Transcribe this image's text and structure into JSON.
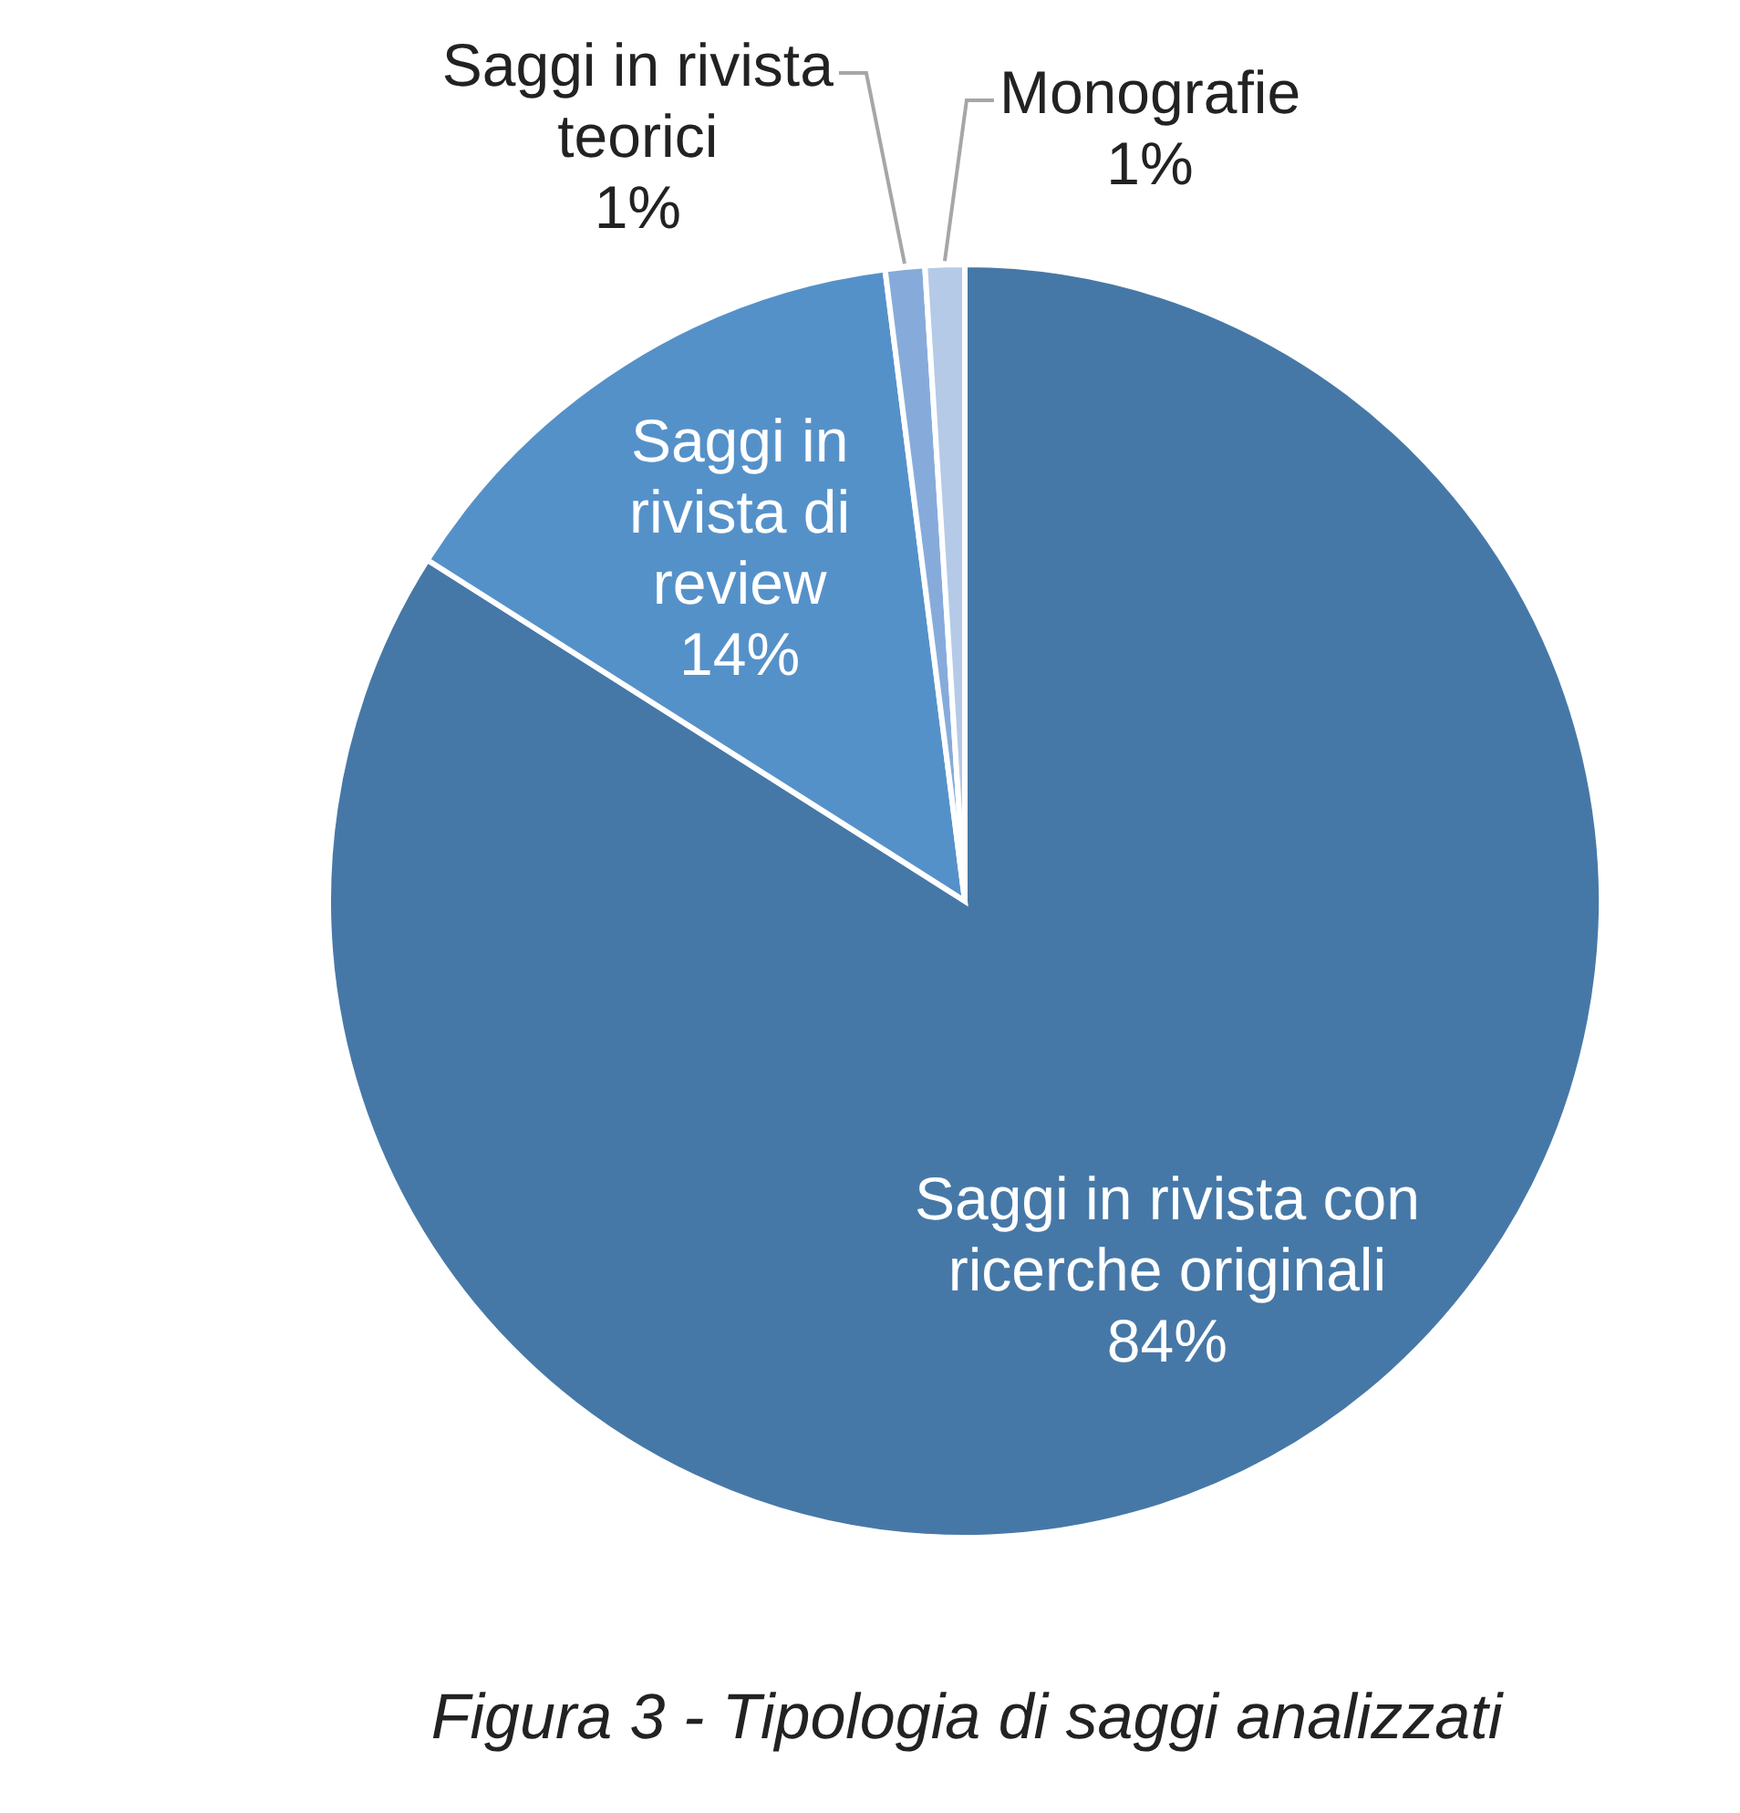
{
  "chart_data": {
    "type": "pie",
    "categories": [
      "Saggi in rivista con ricerche originali",
      "Saggi in rivista di review",
      "Saggi in rivista teorici",
      "Monografie"
    ],
    "values": [
      84,
      14,
      1,
      1
    ],
    "value_labels": [
      "84%",
      "14%",
      "1%",
      "1%"
    ],
    "colors": [
      "#4678a7",
      "#5591c9",
      "#86abdb",
      "#b4cae7"
    ],
    "annotations": [
      "Figura 3 - Tipologia di saggi analizzati"
    ]
  }
}
